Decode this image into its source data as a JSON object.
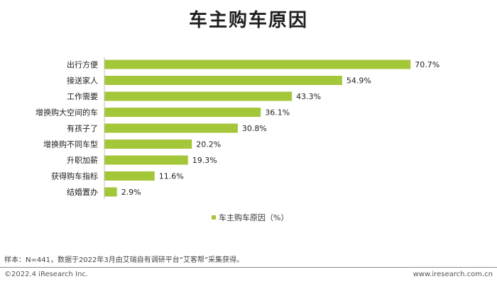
{
  "title": "车主购车原因",
  "chart_data": {
    "type": "bar",
    "orientation": "horizontal",
    "categories": [
      "出行方便",
      "接送家人",
      "工作需要",
      "增换购大空间的车",
      "有孩子了",
      "增换购不同车型",
      "升职加薪",
      "获得购车指标",
      "结婚置办"
    ],
    "series": [
      {
        "name": "车主购车原因（%）",
        "values": [
          70.7,
          54.9,
          43.3,
          36.1,
          30.8,
          20.2,
          19.3,
          11.6,
          2.9
        ]
      }
    ],
    "data_labels": [
      "70.7%",
      "54.9%",
      "43.3%",
      "36.1%",
      "30.8%",
      "20.2%",
      "19.3%",
      "11.6%",
      "2.9%"
    ],
    "xlim": [
      0,
      80
    ],
    "grid": false,
    "legend_position": "bottom",
    "color": "#a4c639"
  },
  "footer": {
    "note": "样本：N=441，数据于2022年3月由艾瑞自有调研平台“艾客帮”采集获得。",
    "copyright": "©2022.4 iResearch Inc.",
    "website": "www.iresearch.com.cn"
  }
}
